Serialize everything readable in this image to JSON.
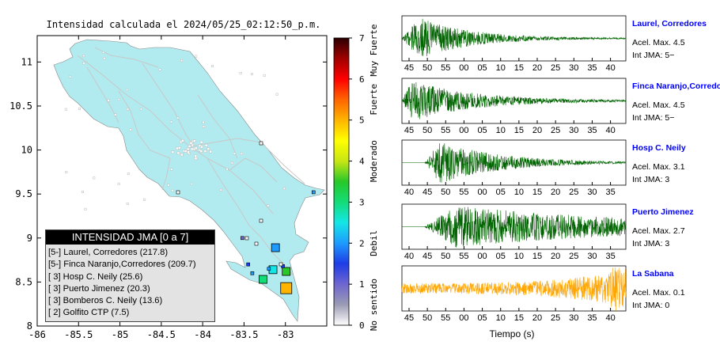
{
  "map": {
    "title": "Intensidad calculada el 2024/05/25_02:12:50_p.m.",
    "x_ticks": [
      "-86",
      "-85.5",
      "-85",
      "-84.5",
      "-84",
      "-83.5",
      "-83"
    ],
    "x_values": [
      -86,
      -85.5,
      -85,
      -84.5,
      -84,
      -83.5,
      -83
    ],
    "y_ticks": [
      "11",
      "10.5",
      "10",
      "9.5",
      "9",
      "8.5",
      "8"
    ],
    "y_values": [
      11,
      10.5,
      10,
      9.5,
      9,
      8.5,
      8
    ],
    "xlim": [
      -86,
      -82.5
    ],
    "ylim": [
      8,
      11.3
    ],
    "land_color": "#b2ebef",
    "stations": [
      {
        "lon": -83.12,
        "lat": 8.89,
        "level": 2.1,
        "size": "large"
      },
      {
        "lon": -82.99,
        "lat": 8.62,
        "level": 3.3,
        "size": "large"
      },
      {
        "lon": -83.15,
        "lat": 8.64,
        "level": 2.6,
        "size": "large"
      },
      {
        "lon": -83.27,
        "lat": 8.53,
        "level": 3.2,
        "size": "large"
      },
      {
        "lon": -82.99,
        "lat": 8.43,
        "level": 4.9,
        "size": "xlarge"
      },
      {
        "lon": -83.45,
        "lat": 8.7,
        "level": 1.5,
        "size": "small"
      },
      {
        "lon": -83.4,
        "lat": 8.6,
        "level": 1.8,
        "size": "small"
      },
      {
        "lon": -83.03,
        "lat": 8.68,
        "level": 1.5,
        "size": "small"
      },
      {
        "lon": -83.52,
        "lat": 9.0,
        "level": 1.2,
        "size": "small"
      },
      {
        "lon": -83.2,
        "lat": 8.65,
        "level": 2.0,
        "size": "small"
      },
      {
        "lon": -82.66,
        "lat": 9.52,
        "level": 2.2,
        "size": "small"
      }
    ]
  },
  "colorbar": {
    "ticks": [
      "0",
      "1",
      "2",
      "3",
      "4",
      "5",
      "6",
      "7"
    ],
    "values": [
      0,
      1,
      2,
      3,
      4,
      5,
      6,
      7
    ],
    "labels": [
      "No sentido",
      "Debil",
      "Moderado",
      "Fuerte",
      "Muy Fuerte"
    ],
    "colors": [
      "#ffffff",
      "#9b9bb4",
      "#6e66d0",
      "#1e3ce6",
      "#1e9bff",
      "#14e6e6",
      "#14dc78",
      "#28c828",
      "#c8e614",
      "#ffff00",
      "#ffb400",
      "#ff6400",
      "#ff0000",
      "#a00000",
      "#2b0000"
    ]
  },
  "legend": {
    "title": "INTENSIDAD JMA [0 a 7]",
    "items": [
      "[5-]  Laurel, Corredores (217.8)",
      "[5-]  Finca Naranjo,Corredores (209.7)",
      "[ 3]  Hosp C. Neily (25.6)",
      "[ 3]  Puerto Jimenez (20.3)",
      "[ 3]  Bomberos C. Neily (13.6)",
      "[ 2]  Golfito CTP (7.5)"
    ]
  },
  "waveforms": {
    "xlabel": "Tiempo (s)",
    "title_color": "#0000ff",
    "panels": [
      {
        "station": "Laurel, Corredores",
        "acel": "Acel. Max. 4.5",
        "int": "Int JMA: 5−",
        "ticks": [
          "45",
          "50",
          "55",
          "00",
          "05",
          "10",
          "15",
          "20",
          "25",
          "30",
          "35",
          "40"
        ],
        "color": "#006400",
        "onset": 0.0,
        "peak": 0.08,
        "decay": 0.22,
        "noise": 0.02
      },
      {
        "station": "Finca Naranjo,Corredores",
        "acel": "Acel. Max. 4.5",
        "int": "Int JMA: 5−",
        "ticks": [
          "45",
          "50",
          "55",
          "00",
          "05",
          "10",
          "15",
          "20",
          "25",
          "30",
          "35",
          "40"
        ],
        "color": "#006400",
        "onset": 0.0,
        "peak": 0.04,
        "decay": 0.28,
        "noise": 0.02
      },
      {
        "station": "Hosp C. Neily",
        "acel": "Acel. Max. 3.1",
        "int": "Int JMA: 3",
        "ticks": [
          "40",
          "45",
          "50",
          "55",
          "00",
          "05",
          "10",
          "15",
          "20",
          "25",
          "30",
          "35"
        ],
        "color": "#006400",
        "onset": 0.1,
        "peak": 0.17,
        "decay": 0.28,
        "noise": 0.0
      },
      {
        "station": "Puerto Jimenez",
        "acel": "Acel. Max. 2.7",
        "int": "Int JMA: 3",
        "ticks": [
          "40",
          "45",
          "50",
          "55",
          "00",
          "05",
          "10",
          "15",
          "20",
          "25",
          "30",
          "35"
        ],
        "color": "#006400",
        "onset": 0.1,
        "peak": 0.24,
        "decay": 0.9,
        "noise": 0.0
      },
      {
        "station": "La Sabana",
        "acel": "Acel. Max. 0.1",
        "int": "Int JMA: 0",
        "ticks": [
          "45",
          "50",
          "55",
          "00",
          "05",
          "10",
          "15",
          "20",
          "25",
          "30",
          "35",
          "40"
        ],
        "color": "#ffa500",
        "onset": 0.0,
        "peak": 0.95,
        "decay": 5.0,
        "noise": 0.35
      }
    ]
  }
}
